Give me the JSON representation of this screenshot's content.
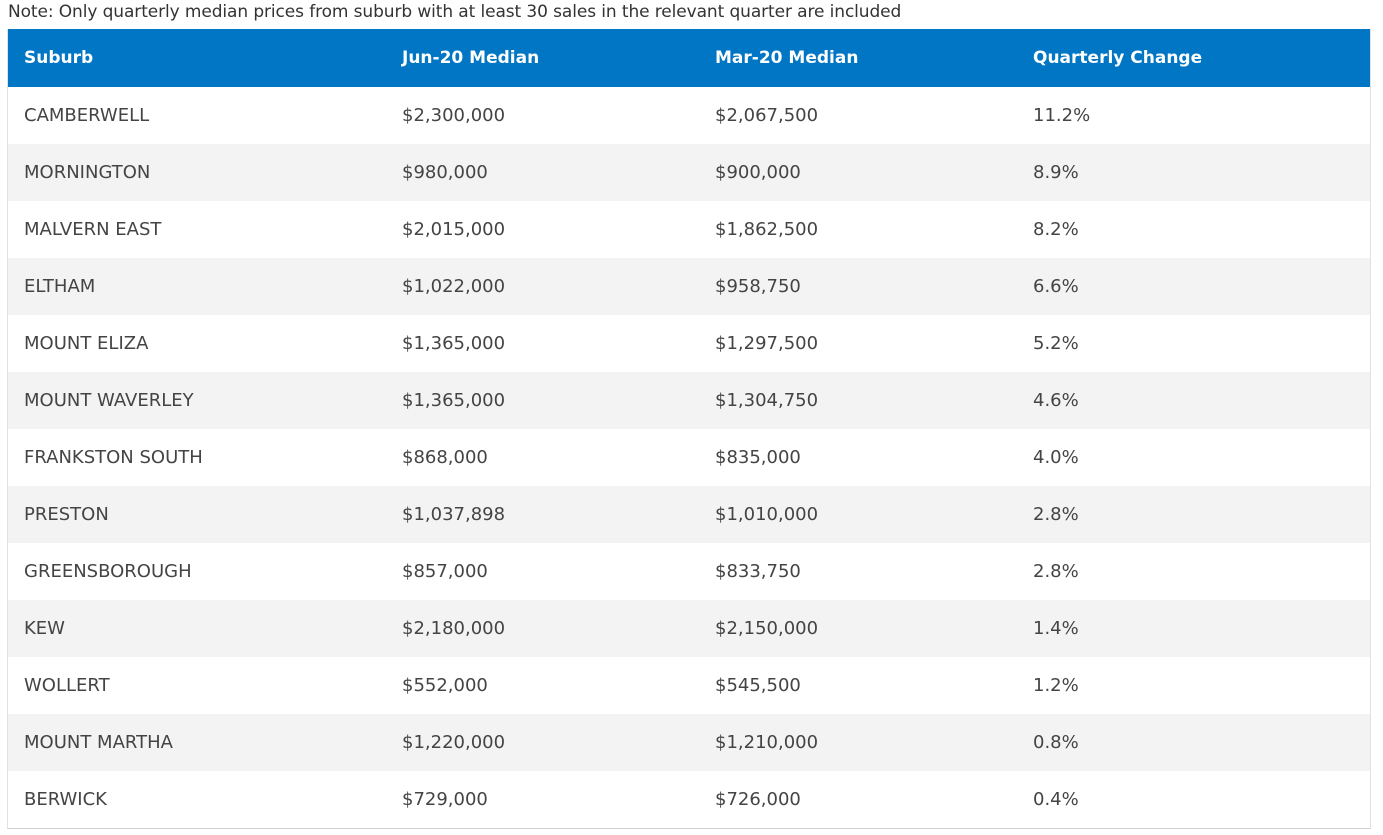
{
  "note": "Note: Only quarterly median prices from suburb with at least 30 sales in the relevant quarter are included",
  "columns": [
    "Suburb",
    "Jun-20 Median",
    "Mar-20 Median",
    "Quarterly Change"
  ],
  "rows": [
    {
      "suburb": "CAMBERWELL",
      "jun": "$2,300,000",
      "mar": "$2,067,500",
      "change": "11.2%"
    },
    {
      "suburb": "MORNINGTON",
      "jun": "$980,000",
      "mar": "$900,000",
      "change": "8.9%"
    },
    {
      "suburb": "MALVERN EAST",
      "jun": "$2,015,000",
      "mar": "$1,862,500",
      "change": "8.2%"
    },
    {
      "suburb": "ELTHAM",
      "jun": "$1,022,000",
      "mar": "$958,750",
      "change": "6.6%"
    },
    {
      "suburb": "MOUNT ELIZA",
      "jun": "$1,365,000",
      "mar": "$1,297,500",
      "change": "5.2%"
    },
    {
      "suburb": "MOUNT WAVERLEY",
      "jun": "$1,365,000",
      "mar": "$1,304,750",
      "change": "4.6%"
    },
    {
      "suburb": "FRANKSTON SOUTH",
      "jun": "$868,000",
      "mar": "$835,000",
      "change": "4.0%"
    },
    {
      "suburb": "PRESTON",
      "jun": "$1,037,898",
      "mar": "$1,010,000",
      "change": "2.8%"
    },
    {
      "suburb": "GREENSBOROUGH",
      "jun": "$857,000",
      "mar": "$833,750",
      "change": "2.8%"
    },
    {
      "suburb": "KEW",
      "jun": "$2,180,000",
      "mar": "$2,150,000",
      "change": "1.4%"
    },
    {
      "suburb": "WOLLERT",
      "jun": "$552,000",
      "mar": "$545,500",
      "change": "1.2%"
    },
    {
      "suburb": "MOUNT MARTHA",
      "jun": "$1,220,000",
      "mar": "$1,210,000",
      "change": "0.8%"
    },
    {
      "suburb": "BERWICK",
      "jun": "$729,000",
      "mar": "$726,000",
      "change": "0.4%"
    }
  ],
  "colors": {
    "header_bg": "#0176c4",
    "header_text": "#ffffff",
    "row_alt_bg": "#f3f3f3",
    "text": "#444444"
  }
}
